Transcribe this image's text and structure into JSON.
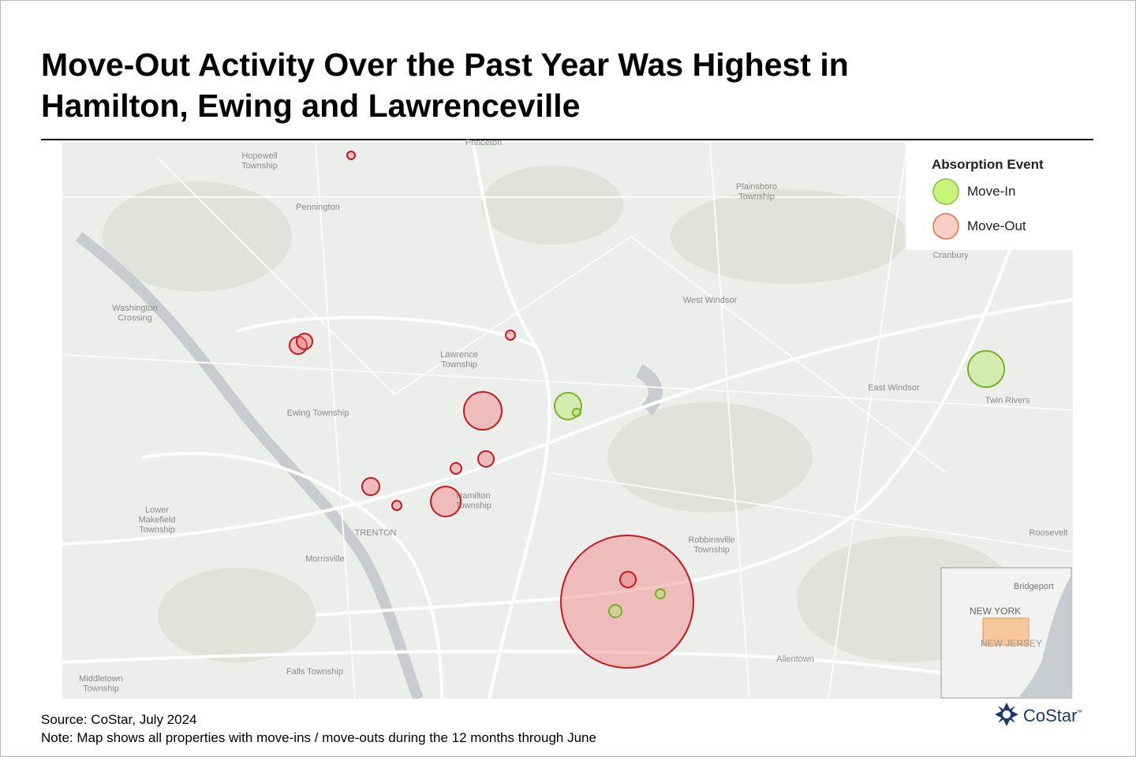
{
  "header": {
    "title_lines": [
      "Move-Out Activity Over the Past Year Was Highest in",
      "Hamilton, Ewing and Lawrenceville"
    ]
  },
  "legend": {
    "title": "Absorption Event",
    "items": [
      "Move-In",
      "Move-Out"
    ]
  },
  "place_labels": [
    [
      "Princeton"
    ],
    [
      "Hopewell",
      "Township"
    ],
    [
      "Pennington"
    ],
    [
      "Plainsboro",
      "Township"
    ],
    [
      "Cranbury"
    ],
    [
      "Washington",
      "Crossing"
    ],
    [
      "West Windsor"
    ],
    [
      "Lawrence",
      "Township"
    ],
    [
      "East Windsor"
    ],
    [
      "Twin Rivers"
    ],
    [
      "Ewing Township"
    ],
    [
      "Hamilton",
      "Township"
    ],
    [
      "Lower",
      "Makefield",
      "Township"
    ],
    [
      "TRENTON"
    ],
    [
      "Robbinsville",
      "Township"
    ],
    [
      "Roosevelt"
    ],
    [
      "Morrisville"
    ],
    [
      "Allentown"
    ],
    [
      "Falls Township"
    ],
    [
      "Middletown",
      "Township"
    ]
  ],
  "inset_labels": [
    "Bridgeport",
    "NEW YORK",
    "NEW JERSEY"
  ],
  "footer": {
    "source": "Source: CoStar, July 2024",
    "note": "Note: Map shows all properties with move-ins / move-outs during the 12 months through June"
  },
  "logo": {
    "text": "CoStar",
    "mark": "™"
  }
}
